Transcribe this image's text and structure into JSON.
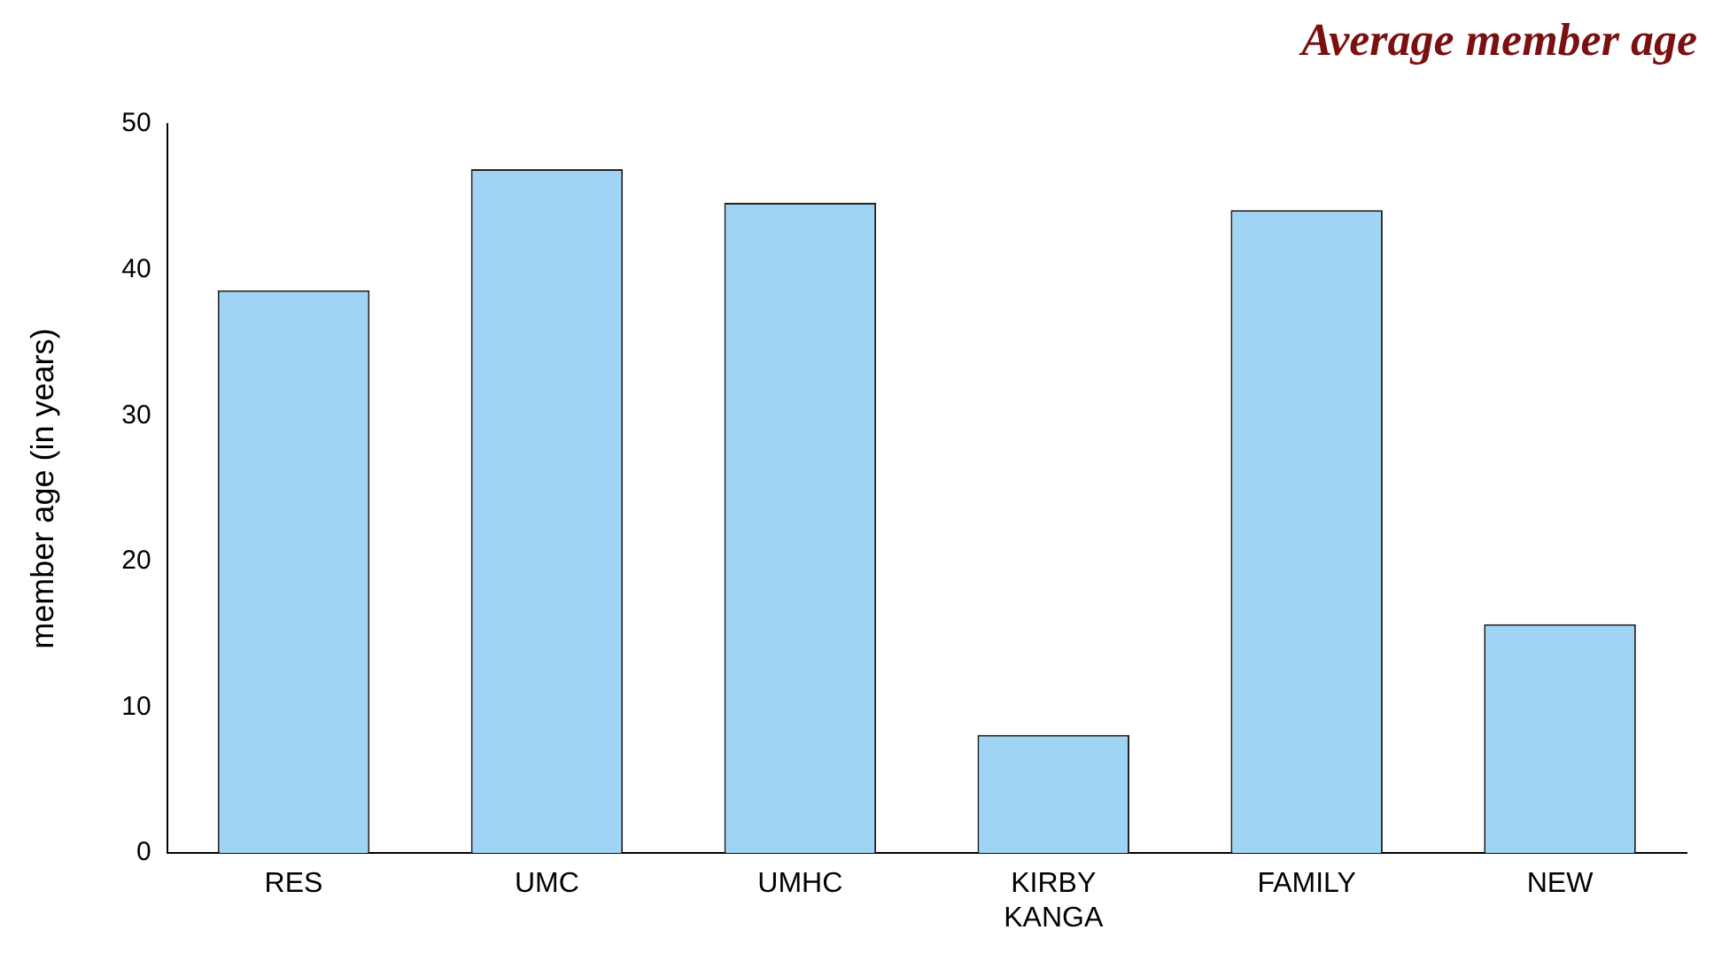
{
  "chart_data": {
    "type": "bar",
    "title": "Average member age",
    "ylabel": "member age (in years)",
    "categories": [
      "RES",
      "UMC",
      "UMHC",
      "KIRBY KANGA",
      "FAMILY",
      "NEW"
    ],
    "values": [
      38.6,
      46.9,
      44.6,
      8.1,
      44.1,
      15.7
    ],
    "color": "#a0d4f4",
    "ylim": [
      0,
      50
    ],
    "yticks": [
      0,
      10,
      20,
      30,
      40,
      50
    ],
    "grid": false,
    "legend": false
  }
}
